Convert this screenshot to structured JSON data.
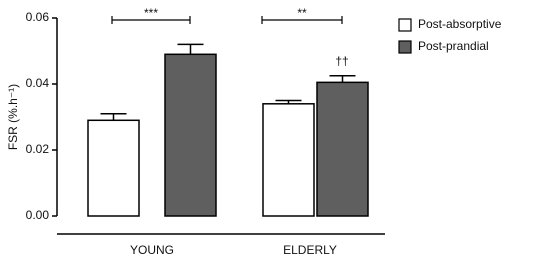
{
  "chart_data": {
    "type": "bar",
    "y_label": "FSR (%.h⁻¹)",
    "categories": [
      "YOUNG",
      "ELDERLY"
    ],
    "series": [
      {
        "name": "Post-absorptive",
        "color": "#ffffff",
        "values": [
          0.029,
          0.034
        ],
        "errors": [
          0.002,
          0.001
        ]
      },
      {
        "name": "Post-prandial",
        "color": "#5f5f5f",
        "values": [
          0.049,
          0.0405
        ],
        "errors": [
          0.003,
          0.002
        ]
      }
    ],
    "ylim": [
      0,
      0.06
    ],
    "yticks": [
      {
        "value": 0,
        "label": "0.00"
      },
      {
        "value": 0.02,
        "label": "0.02"
      },
      {
        "value": 0.04,
        "label": "0.04"
      },
      {
        "value": 0.06,
        "label": "0.06"
      }
    ],
    "annotations": [
      "***",
      "**",
      "††"
    ],
    "legend": "upper right"
  }
}
